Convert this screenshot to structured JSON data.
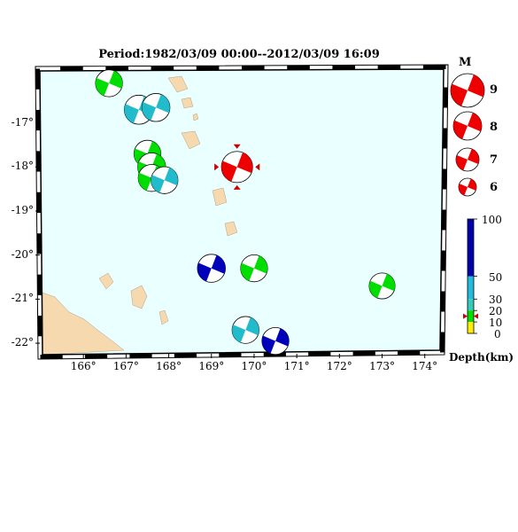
{
  "title": "Period:1982/03/09 00:00--2012/03/09 16:09",
  "map": {
    "lon_ticks": [
      "166°",
      "167°",
      "168°",
      "169°",
      "170°",
      "171°",
      "172°",
      "173°",
      "174°"
    ],
    "lat_ticks": [
      "-17°",
      "-18°",
      "-19°",
      "-20°",
      "-21°",
      "-22°"
    ],
    "ocean_color": "#eaffff",
    "land_color": "#f7d9b0"
  },
  "events": [
    {
      "lon": 166.6,
      "lat": -16.1,
      "depth_class": "shallow",
      "color": "#00dd00",
      "mag": 6.2
    },
    {
      "lon": 167.3,
      "lat": -16.7,
      "depth_class": "intermediate",
      "color": "#22bbcc",
      "mag": 6.4
    },
    {
      "lon": 167.7,
      "lat": -16.65,
      "depth_class": "intermediate",
      "color": "#22bbcc",
      "mag": 6.3
    },
    {
      "lon": 167.5,
      "lat": -17.7,
      "depth_class": "shallow",
      "color": "#00dd00",
      "mag": 6.2
    },
    {
      "lon": 167.6,
      "lat": -18.0,
      "depth_class": "shallow",
      "color": "#00dd00",
      "mag": 6.3
    },
    {
      "lon": 167.6,
      "lat": -18.25,
      "depth_class": "shallow",
      "color": "#00dd00",
      "mag": 6.2
    },
    {
      "lon": 167.9,
      "lat": -18.3,
      "depth_class": "intermediate",
      "color": "#22bbcc",
      "mag": 6.2
    },
    {
      "lon": 169.0,
      "lat": -20.3,
      "depth_class": "deep",
      "color": "#0000bb",
      "mag": 6.3
    },
    {
      "lon": 170.0,
      "lat": -20.3,
      "depth_class": "shallow",
      "color": "#00dd00",
      "mag": 6.2
    },
    {
      "lon": 173.0,
      "lat": -20.7,
      "depth_class": "shallow",
      "color": "#00dd00",
      "mag": 6.1
    },
    {
      "lon": 169.8,
      "lat": -21.7,
      "depth_class": "intermediate",
      "color": "#22bbcc",
      "mag": 6.2
    },
    {
      "lon": 170.5,
      "lat": -21.95,
      "depth_class": "deep",
      "color": "#0000bb",
      "mag": 6.2
    },
    {
      "lon": 169.6,
      "lat": -18.0,
      "depth_class": "latest",
      "color": "#ee0000",
      "mag": 6.6
    }
  ],
  "magnitude_legend": {
    "title": "M",
    "entries": [
      {
        "label": "9",
        "mag": 9
      },
      {
        "label": "8",
        "mag": 8
      },
      {
        "label": "7",
        "mag": 7
      },
      {
        "label": "6",
        "mag": 6
      }
    ],
    "color": "#ee0000"
  },
  "depth_scale": {
    "title": "Depth(km)",
    "ticks": [
      "100",
      "50",
      "30",
      "20",
      "10",
      "0"
    ],
    "bands": [
      {
        "from": 50,
        "to": 100,
        "color": "#0000aa"
      },
      {
        "from": 30,
        "to": 50,
        "color": "#22bbdd"
      },
      {
        "from": 20,
        "to": 30,
        "color": "#33ccbb"
      },
      {
        "from": 10,
        "to": 20,
        "color": "#00dd00"
      },
      {
        "from": 0,
        "to": 10,
        "color": "#ffee00"
      }
    ],
    "marker_depth": 15
  }
}
